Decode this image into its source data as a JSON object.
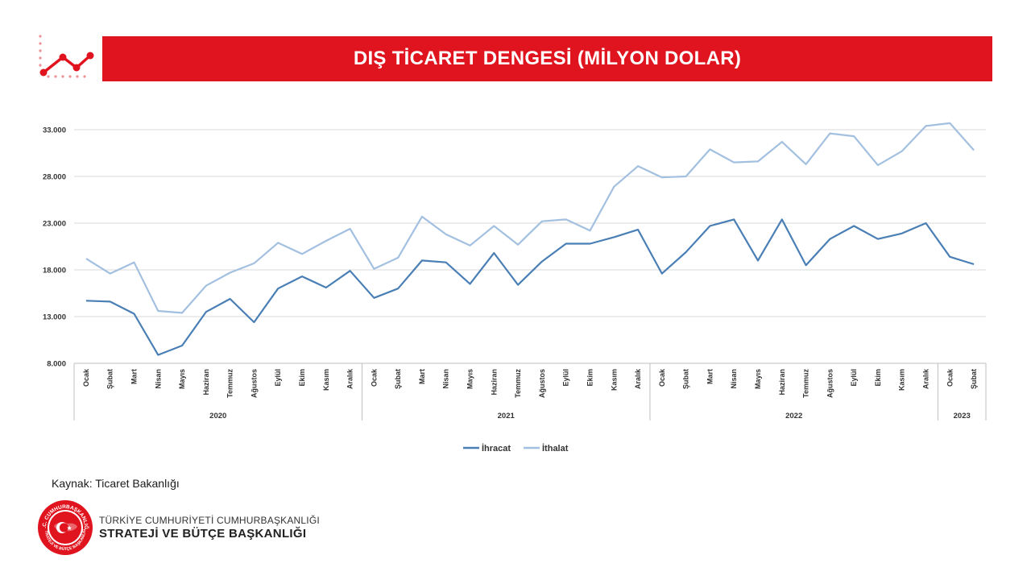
{
  "header": {
    "title": "DIŞ TİCARET DENGESİ (MİLYON DOLAR)"
  },
  "colors": {
    "banner": "#e0141e",
    "ihracat": "#4a7fb5",
    "ithalat": "#a3c0e0"
  },
  "icons": {
    "header": "trend-line-icon",
    "emblem": "seal-emblem-icon"
  },
  "chart_data": {
    "type": "line",
    "title": "",
    "xlabel": "",
    "ylabel": "",
    "ylim": [
      8000,
      33000
    ],
    "yticks": [
      "8.000",
      "13.000",
      "18.000",
      "23.000",
      "28.000",
      "33.000"
    ],
    "grid": true,
    "legend_position": "bottom",
    "categories": [
      "Ocak",
      "Şubat",
      "Mart",
      "Nisan",
      "Mayıs",
      "Haziran",
      "Temmuz",
      "Ağustos",
      "Eylül",
      "Ekim",
      "Kasım",
      "Aralık",
      "Ocak",
      "Şubat",
      "Mart",
      "Nisan",
      "Mayıs",
      "Haziran",
      "Temmuz",
      "Ağustos",
      "Eylül",
      "Ekim",
      "Kasım",
      "Aralık",
      "Ocak",
      "Şubat",
      "Mart",
      "Nisan",
      "Mayıs",
      "Haziran",
      "Temmuz",
      "Ağustos",
      "Eylül",
      "Ekim",
      "Kasım",
      "Aralık",
      "Ocak",
      "Şubat"
    ],
    "year_groups": [
      {
        "label": "2020",
        "count": 12
      },
      {
        "label": "2021",
        "count": 12
      },
      {
        "label": "2022",
        "count": 12
      },
      {
        "label": "2023",
        "count": 2
      }
    ],
    "series": [
      {
        "name": "İhracat",
        "values": [
          14700,
          14600,
          13300,
          8900,
          9900,
          13500,
          14900,
          12400,
          16000,
          17300,
          16100,
          17900,
          15000,
          16000,
          19000,
          18800,
          16500,
          19800,
          16400,
          18900,
          20800,
          20800,
          21500,
          22300,
          17600,
          19900,
          22700,
          23400,
          19000,
          23400,
          18500,
          21300,
          22700,
          21300,
          21900,
          23000,
          19400,
          18600
        ]
      },
      {
        "name": "İthalat",
        "values": [
          19200,
          17600,
          18800,
          13600,
          13400,
          16300,
          17700,
          18700,
          20900,
          19700,
          21100,
          22400,
          18100,
          19300,
          23700,
          21800,
          20600,
          22700,
          20700,
          23200,
          23400,
          22200,
          26900,
          29100,
          27900,
          28000,
          30900,
          29500,
          29600,
          31700,
          29300,
          32600,
          32300,
          29200,
          30700,
          33400,
          33700,
          30800
        ]
      }
    ]
  },
  "source_text": "Kaynak: Ticaret Bakanlığı",
  "footer": {
    "org_line1": "TÜRKİYE CUMHURİYETİ CUMHURBAŞKANLIĞI",
    "org_line2": "STRATEJİ VE BÜTÇE BAŞKANLIĞI",
    "emblem_text_top": "T.C. CUMHURBAŞKANLIĞI",
    "emblem_text_bottom": "STRATEJİ VE BÜTÇE BAŞKANLIĞI"
  }
}
